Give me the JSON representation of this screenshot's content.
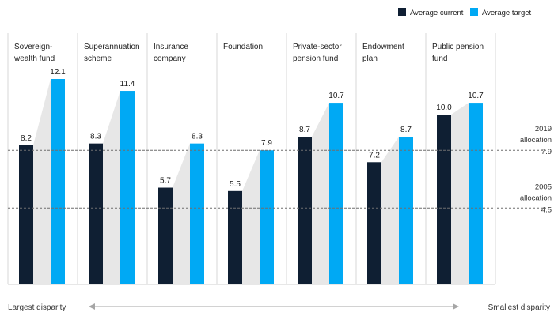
{
  "chart_data": {
    "type": "bar",
    "legend_position": "top-right",
    "legend": {
      "entries": [
        {
          "name": "Average current",
          "color": "#0f1f33"
        },
        {
          "name": "Average target",
          "color": "#00a9f4"
        }
      ]
    },
    "categories": [
      [
        "Sovereign-",
        "wealth fund"
      ],
      [
        "Superannuation",
        "scheme"
      ],
      [
        "Insurance",
        "company"
      ],
      [
        "Foundation"
      ],
      [
        "Private-sector",
        "pension fund"
      ],
      [
        "Endowment",
        "plan"
      ],
      [
        "Public pension",
        "fund"
      ]
    ],
    "series": [
      {
        "name": "Average current",
        "color": "#0f1f33",
        "values": [
          8.2,
          8.3,
          5.7,
          5.5,
          8.7,
          7.2,
          10.0
        ],
        "labels": [
          "8.2",
          "8.3",
          "5.7",
          "5.5",
          "8.7",
          "7.2",
          "10.0"
        ]
      },
      {
        "name": "Average target",
        "color": "#00a9f4",
        "values": [
          12.1,
          11.4,
          8.3,
          7.9,
          10.7,
          8.7,
          10.7
        ],
        "labels": [
          "12.1",
          "11.4",
          "8.3",
          "7.9",
          "10.7",
          "8.7",
          "10.7"
        ]
      }
    ],
    "ylim": [
      0,
      14.5
    ],
    "reference_lines": [
      {
        "value": 7.9,
        "lines": [
          "2019",
          "allocation",
          "7.9"
        ]
      },
      {
        "value": 4.5,
        "lines": [
          "2005",
          "allocation",
          "4.5"
        ]
      }
    ],
    "footer": {
      "left": "Largest disparity",
      "right": "Smallest disparity"
    },
    "grid": false
  }
}
